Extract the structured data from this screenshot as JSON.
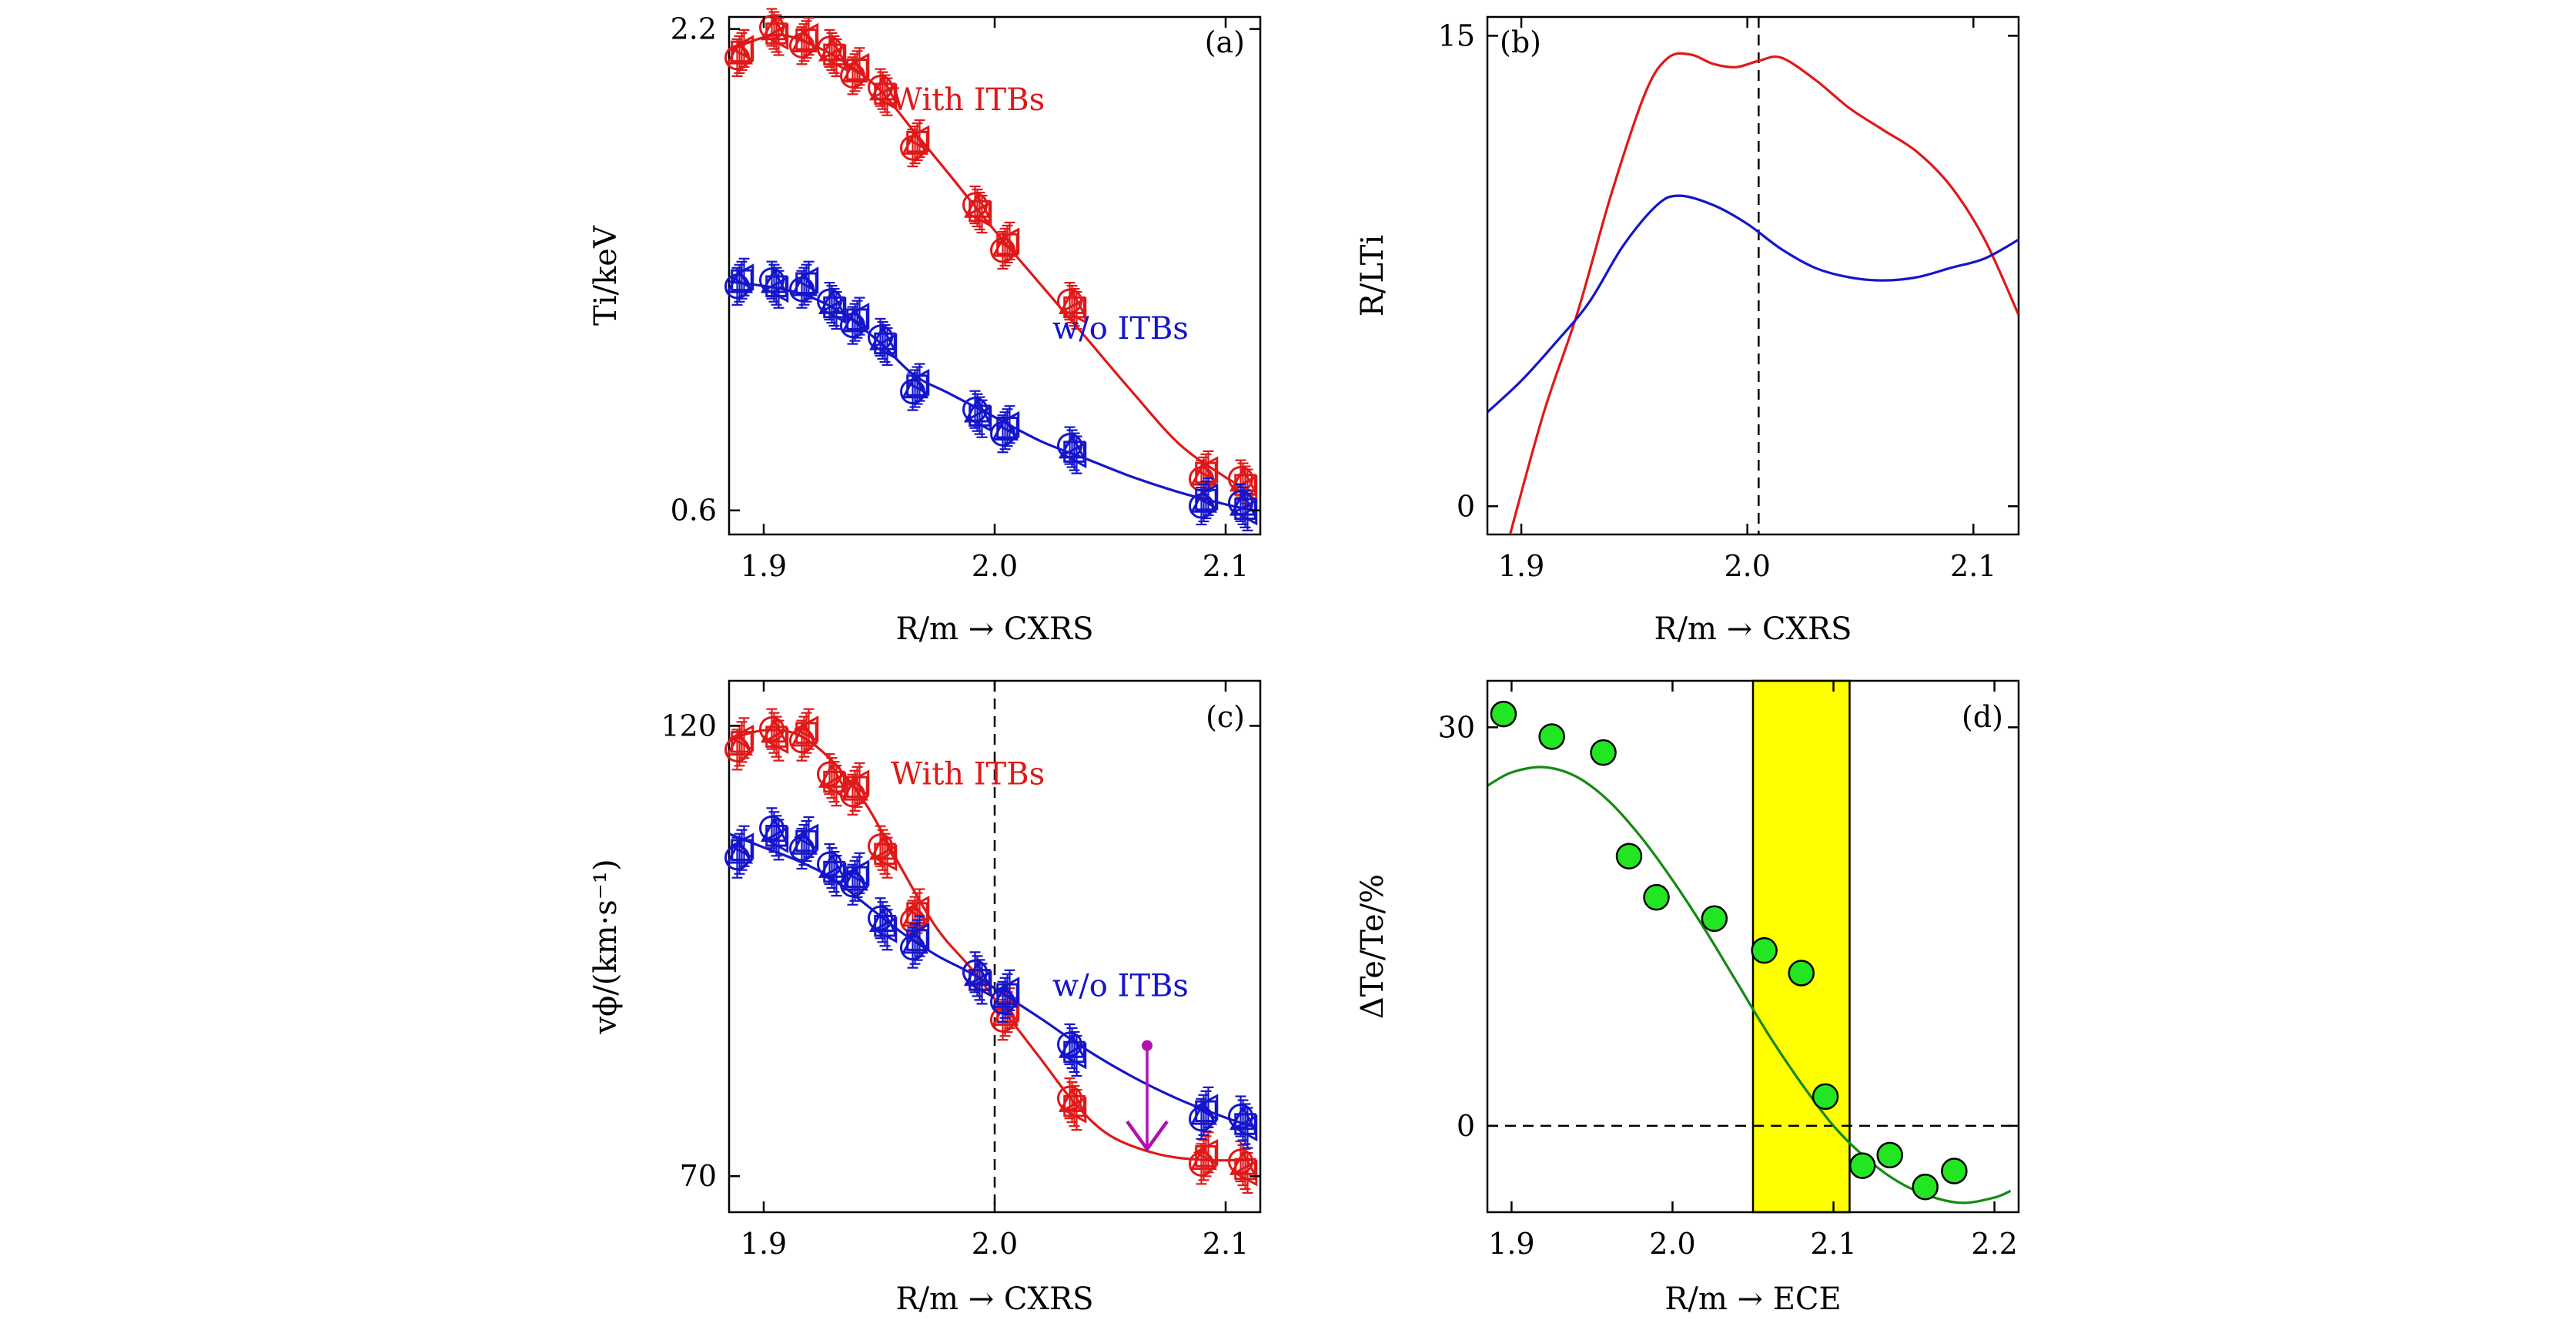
{
  "colors": {
    "red": "#e01818",
    "blue": "#1515cc",
    "green": "#138a13",
    "marker_green": "#22e622",
    "magenta": "#b010b0",
    "band": "#ffff00"
  },
  "chart_data": [
    {
      "panel": "(a)",
      "type": "line",
      "xlabel": "R/m → CXRS",
      "ylabel": "Ti/keV",
      "xlim": [
        1.885,
        2.115
      ],
      "ylim": [
        0.52,
        2.24
      ],
      "x_ticks": [
        "1.9",
        "2.0",
        "2.1"
      ],
      "y_ticks": [
        "0.6",
        "2.2"
      ],
      "x_tick_values": [
        1.9,
        2.0,
        2.1
      ],
      "y_tick_values": [
        0.6,
        2.2
      ],
      "annotations": [
        {
          "text": "With ITBs",
          "color": "red",
          "x": 1.955,
          "y": 1.93
        },
        {
          "text": "w/o ITBs",
          "color": "blue",
          "x": 2.025,
          "y": 1.17
        }
      ],
      "series": [
        {
          "name": "With ITBs",
          "color": "red",
          "x": [
            1.89,
            1.905,
            1.918,
            1.93,
            1.94,
            1.952,
            1.966,
            1.993,
            2.005,
            2.034,
            2.091,
            2.108
          ],
          "y": [
            2.12,
            2.19,
            2.16,
            2.12,
            2.06,
            1.99,
            1.82,
            1.6,
            1.48,
            1.28,
            0.72,
            0.69
          ],
          "curve": [
            [
              1.885,
              2.13
            ],
            [
              1.905,
              2.18
            ],
            [
              1.92,
              2.15
            ],
            [
              1.935,
              2.09
            ],
            [
              1.95,
              2.0
            ],
            [
              1.965,
              1.86
            ],
            [
              1.98,
              1.72
            ],
            [
              2.0,
              1.53
            ],
            [
              2.02,
              1.35
            ],
            [
              2.04,
              1.17
            ],
            [
              2.06,
              0.99
            ],
            [
              2.08,
              0.82
            ],
            [
              2.1,
              0.71
            ],
            [
              2.112,
              0.66
            ]
          ]
        },
        {
          "name": "w/o ITBs",
          "color": "blue",
          "x": [
            1.89,
            1.905,
            1.918,
            1.93,
            1.94,
            1.952,
            1.966,
            1.993,
            2.005,
            2.034,
            2.091,
            2.108
          ],
          "y": [
            1.36,
            1.35,
            1.35,
            1.28,
            1.23,
            1.16,
            1.01,
            0.92,
            0.87,
            0.8,
            0.63,
            0.61
          ],
          "curve": [
            [
              1.885,
              1.36
            ],
            [
              1.905,
              1.34
            ],
            [
              1.92,
              1.31
            ],
            [
              1.935,
              1.25
            ],
            [
              1.95,
              1.16
            ],
            [
              1.965,
              1.05
            ],
            [
              1.98,
              0.99
            ],
            [
              2.0,
              0.91
            ],
            [
              2.02,
              0.83
            ],
            [
              2.04,
              0.77
            ],
            [
              2.06,
              0.71
            ],
            [
              2.08,
              0.66
            ],
            [
              2.1,
              0.62
            ],
            [
              2.112,
              0.6
            ]
          ]
        }
      ]
    },
    {
      "panel": "(b)",
      "type": "line",
      "xlabel": "R/m → CXRS",
      "ylabel": "R/LTi",
      "xlim": [
        1.885,
        2.12
      ],
      "ylim": [
        -0.9,
        15.6
      ],
      "x_ticks": [
        "1.9",
        "2.0",
        "2.1"
      ],
      "y_ticks": [
        "0",
        "15"
      ],
      "x_tick_values": [
        1.9,
        2.0,
        2.1
      ],
      "y_tick_values": [
        0,
        15
      ],
      "vline_x": 2.005,
      "series": [
        {
          "name": "",
          "color": "red",
          "curve": [
            [
              1.895,
              -0.9
            ],
            [
              1.91,
              3.0
            ],
            [
              1.925,
              6.2
            ],
            [
              1.94,
              10.0
            ],
            [
              1.955,
              13.2
            ],
            [
              1.965,
              14.3
            ],
            [
              1.975,
              14.4
            ],
            [
              1.985,
              14.1
            ],
            [
              1.995,
              14.0
            ],
            [
              2.005,
              14.2
            ],
            [
              2.015,
              14.3
            ],
            [
              2.03,
              13.6
            ],
            [
              2.045,
              12.7
            ],
            [
              2.06,
              12.0
            ],
            [
              2.075,
              11.3
            ],
            [
              2.09,
              10.2
            ],
            [
              2.105,
              8.5
            ],
            [
              2.12,
              6.1
            ]
          ]
        },
        {
          "name": "",
          "color": "blue",
          "curve": [
            [
              1.885,
              3.0
            ],
            [
              1.9,
              4.0
            ],
            [
              1.915,
              5.2
            ],
            [
              1.93,
              6.5
            ],
            [
              1.945,
              8.3
            ],
            [
              1.96,
              9.6
            ],
            [
              1.97,
              9.9
            ],
            [
              1.985,
              9.6
            ],
            [
              2.0,
              9.0
            ],
            [
              2.015,
              8.2
            ],
            [
              2.03,
              7.6
            ],
            [
              2.045,
              7.3
            ],
            [
              2.06,
              7.2
            ],
            [
              2.075,
              7.3
            ],
            [
              2.09,
              7.6
            ],
            [
              2.105,
              7.9
            ],
            [
              2.12,
              8.5
            ]
          ]
        }
      ]
    },
    {
      "panel": "(c)",
      "type": "line",
      "xlabel": "R/m → CXRS",
      "ylabel": "vϕ/(km·s⁻¹)",
      "xlim": [
        1.885,
        2.115
      ],
      "ylim": [
        66,
        125
      ],
      "x_ticks": [
        "1.9",
        "2.0",
        "2.1"
      ],
      "y_ticks": [
        "70",
        "120"
      ],
      "x_tick_values": [
        1.9,
        2.0,
        2.1
      ],
      "y_tick_values": [
        70,
        120
      ],
      "vline_x": 2.0,
      "arrow": {
        "x": 2.066,
        "y_start": 84.5,
        "y_end": 73.0
      },
      "annotations": [
        {
          "text": "With ITBs",
          "color": "red",
          "x": 1.955,
          "y": 113.5
        },
        {
          "text": "w/o ITBs",
          "color": "blue",
          "x": 2.025,
          "y": 90.0
        }
      ],
      "series": [
        {
          "name": "With ITBs",
          "color": "red",
          "x": [
            1.89,
            1.905,
            1.918,
            1.93,
            1.94,
            1.952,
            1.966,
            1.993,
            2.005,
            2.034,
            2.091,
            2.108
          ],
          "y": [
            118,
            119,
            119,
            114,
            113,
            106,
            99,
            92,
            88,
            78,
            72,
            71
          ],
          "curve": [
            [
              1.885,
              118.5
            ],
            [
              1.9,
              119.5
            ],
            [
              1.915,
              119.0
            ],
            [
              1.93,
              116.0
            ],
            [
              1.945,
              111.0
            ],
            [
              1.96,
              104.0
            ],
            [
              1.975,
              97.5
            ],
            [
              1.99,
              93.0
            ],
            [
              2.005,
              88.0
            ],
            [
              2.02,
              83.0
            ],
            [
              2.035,
              78.0
            ],
            [
              2.05,
              74.5
            ],
            [
              2.07,
              72.5
            ],
            [
              2.09,
              71.8
            ],
            [
              2.112,
              71.8
            ]
          ]
        },
        {
          "name": "w/o ITBs",
          "color": "blue",
          "x": [
            1.89,
            1.905,
            1.918,
            1.93,
            1.94,
            1.952,
            1.966,
            1.993,
            2.005,
            2.034,
            2.091,
            2.108
          ],
          "y": [
            106,
            108,
            107,
            104,
            103,
            98,
            96,
            92,
            90,
            84,
            77,
            76
          ],
          "curve": [
            [
              1.885,
              108.0
            ],
            [
              1.9,
              106.5
            ],
            [
              1.915,
              105.0
            ],
            [
              1.93,
              103.0
            ],
            [
              1.945,
              100.0
            ],
            [
              1.96,
              97.0
            ],
            [
              1.975,
              94.5
            ],
            [
              1.99,
              92.5
            ],
            [
              2.005,
              90.0
            ],
            [
              2.02,
              87.5
            ],
            [
              2.04,
              84.0
            ],
            [
              2.06,
              81.0
            ],
            [
              2.08,
              78.5
            ],
            [
              2.1,
              76.5
            ],
            [
              2.112,
              75.5
            ]
          ]
        }
      ]
    },
    {
      "panel": "(d)",
      "type": "scatter",
      "xlabel": "R/m → ECE",
      "ylabel": "ΔTe/Te/%",
      "xlim": [
        1.885,
        2.215
      ],
      "ylim": [
        -6.5,
        33.5
      ],
      "x_ticks": [
        "1.9",
        "2.0",
        "2.1",
        "2.2"
      ],
      "y_ticks": [
        "0",
        "30"
      ],
      "x_tick_values": [
        1.9,
        2.0,
        2.1,
        2.2
      ],
      "y_tick_values": [
        0,
        30
      ],
      "hline_y": 0,
      "band": [
        2.05,
        2.11
      ],
      "series": [
        {
          "name": "",
          "color": "marker_green",
          "x": [
            1.895,
            1.925,
            1.957,
            1.973,
            1.99,
            2.026,
            2.057,
            2.08,
            2.095,
            2.118,
            2.135,
            2.157,
            2.175
          ],
          "y": [
            31.0,
            29.3,
            28.1,
            20.3,
            17.2,
            15.6,
            13.2,
            11.5,
            2.2,
            -3.0,
            -2.2,
            -4.6,
            -3.4
          ]
        },
        {
          "name": "",
          "color": "green",
          "curve": [
            [
              1.885,
              25.6
            ],
            [
              1.9,
              26.6
            ],
            [
              1.92,
              27.0
            ],
            [
              1.94,
              26.3
            ],
            [
              1.96,
              24.5
            ],
            [
              1.98,
              21.8
            ],
            [
              2.0,
              18.5
            ],
            [
              2.02,
              14.8
            ],
            [
              2.04,
              10.8
            ],
            [
              2.06,
              6.8
            ],
            [
              2.08,
              3.2
            ],
            [
              2.1,
              0.0
            ],
            [
              2.12,
              -2.4
            ],
            [
              2.14,
              -4.2
            ],
            [
              2.16,
              -5.3
            ],
            [
              2.18,
              -5.8
            ],
            [
              2.2,
              -5.4
            ],
            [
              2.21,
              -4.9
            ]
          ]
        }
      ]
    }
  ]
}
